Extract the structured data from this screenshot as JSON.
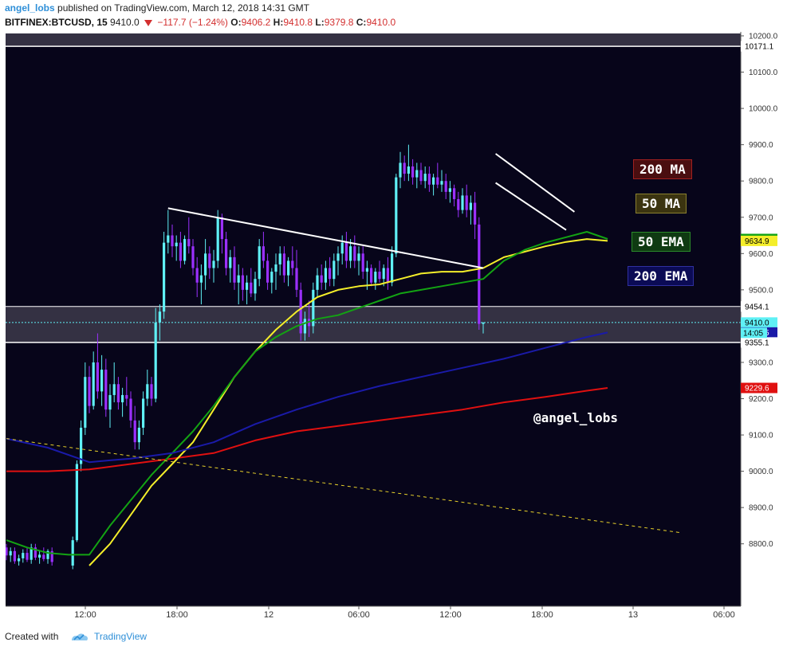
{
  "header": {
    "author": "angel_lobs",
    "published_text": "published on TradingView.com, March 12, 2018 14:31 GMT",
    "symbol": "BITFINEX:BTCUSD, 15",
    "last": "9410.0",
    "change": "−117.7 (−1.24%)",
    "open_label": "O:",
    "open": "9406.2",
    "high_label": "H:",
    "high": "9410.8",
    "low_label": "L:",
    "low": "9379.8",
    "close_label": "C:",
    "close": "9410.0"
  },
  "footer": {
    "created_with": "Created with",
    "brand": "TradingView"
  },
  "watermark": "@angel_lobs",
  "colors": {
    "background": "#07051a",
    "up_candle": "#5ff0f5",
    "down_candle": "#9b30ff",
    "ma200": "#e01010",
    "ma50": "#f4ee2a",
    "ema50": "#13a313",
    "ema200": "#1a1aa8",
    "resistance": "#ffffff",
    "trend_dashed": "#e8d22a",
    "zone": "#3a3648"
  },
  "legend": [
    {
      "label": "200 MA",
      "bg": "#4a0e10",
      "border": "#a02020",
      "color": "#ffffff"
    },
    {
      "label": "50 MA",
      "bg": "#3b3410",
      "border": "#8a8030",
      "color": "#ffffff"
    },
    {
      "label": "50 EMA",
      "bg": "#0f3a12",
      "border": "#2a8a2a",
      "color": "#ffffff"
    },
    {
      "label": "200 EMA",
      "bg": "#0b0b55",
      "border": "#3030a0",
      "color": "#ffffff"
    }
  ],
  "chart_data": {
    "type": "line",
    "title": "BITFINEX:BTCUSD, 15",
    "xlabel": "",
    "ylabel": "",
    "ylim": [
      8730,
      10330
    ],
    "x_ticks": [
      "12:00",
      "18:00",
      "12",
      "06:00",
      "12:00",
      "18:00",
      "13",
      "06:00"
    ],
    "y_ticks": [
      "8800.0",
      "8900.0",
      "9000.0",
      "9100.0",
      "9200.0",
      "9300.0",
      "9400.0",
      "9500.0",
      "9600.0",
      "9700.0",
      "9800.0",
      "9900.0",
      "10000.0",
      "10100.0",
      "10200.0"
    ],
    "price_labels": [
      {
        "value": 10171.1,
        "text": "10171.1",
        "bg": "#ffffff",
        "fg": "#000000"
      },
      {
        "value": 9640.2,
        "text": "9640.2",
        "bg": "#13a313",
        "fg": "#ffffff"
      },
      {
        "value": 9634.9,
        "text": "9634.9",
        "bg": "#f4ee2a",
        "fg": "#000000"
      },
      {
        "value": 9454.1,
        "text": "9454.1",
        "bg": "#ffffff",
        "fg": "#000000"
      },
      {
        "value": 9410.0,
        "text": "9410.0",
        "bg": "#5ff0f5",
        "fg": "#000000"
      },
      {
        "value": 9382.5,
        "text": "9382.5",
        "bg": "#1a1aa8",
        "fg": "#ffffff"
      },
      {
        "value": 9355.1,
        "text": "9355.1",
        "bg": "#ffffff",
        "fg": "#000000"
      },
      {
        "value": 9229.6,
        "text": "9229.6",
        "bg": "#e01010",
        "fg": "#ffffff"
      }
    ],
    "countdown": "14:05",
    "zones": [
      {
        "name": "upper",
        "from": 10171.1,
        "to": 10330
      },
      {
        "name": "support",
        "from": 9355.1,
        "to": 9454.1
      }
    ],
    "series": [
      {
        "name": "200 MA",
        "x": [
          0,
          10,
          20,
          30,
          40,
          50,
          60,
          70,
          80,
          90,
          100,
          110,
          120,
          130,
          140,
          145
        ],
        "values": [
          9000,
          9000,
          9005,
          9020,
          9035,
          9050,
          9085,
          9110,
          9125,
          9140,
          9155,
          9170,
          9190,
          9205,
          9222,
          9229.6
        ]
      },
      {
        "name": "50 MA",
        "x": [
          20,
          25,
          30,
          35,
          40,
          45,
          50,
          55,
          60,
          65,
          70,
          75,
          80,
          85,
          90,
          95,
          100,
          105,
          110,
          115,
          120,
          125,
          130,
          135,
          140,
          145
        ],
        "values": [
          8740,
          8800,
          8880,
          8960,
          9020,
          9080,
          9170,
          9260,
          9330,
          9390,
          9440,
          9480,
          9500,
          9510,
          9515,
          9530,
          9545,
          9550,
          9550,
          9560,
          9590,
          9605,
          9620,
          9632,
          9640,
          9634.9
        ]
      },
      {
        "name": "50 EMA",
        "x": [
          0,
          5,
          10,
          15,
          20,
          25,
          30,
          35,
          40,
          45,
          50,
          55,
          60,
          65,
          70,
          75,
          80,
          85,
          90,
          95,
          100,
          105,
          110,
          115,
          120,
          125,
          130,
          135,
          140,
          145
        ],
        "values": [
          8810,
          8790,
          8775,
          8770,
          8770,
          8850,
          8920,
          8990,
          9050,
          9110,
          9180,
          9260,
          9330,
          9370,
          9400,
          9420,
          9430,
          9450,
          9470,
          9490,
          9500,
          9510,
          9520,
          9530,
          9580,
          9610,
          9630,
          9645,
          9660,
          9640.2
        ]
      },
      {
        "name": "200 EMA",
        "x": [
          0,
          10,
          20,
          25,
          30,
          40,
          50,
          60,
          70,
          80,
          90,
          100,
          110,
          120,
          130,
          140,
          145
        ],
        "values": [
          9090,
          9065,
          9025,
          9030,
          9035,
          9050,
          9080,
          9130,
          9170,
          9205,
          9235,
          9260,
          9285,
          9310,
          9340,
          9370,
          9382.5
        ]
      },
      {
        "name": "Resistance",
        "x": [
          39,
          115
        ],
        "values": [
          9725,
          9560
        ]
      },
      {
        "name": "Channel top",
        "x": [
          118,
          137
        ],
        "values": [
          9875,
          9715
        ]
      },
      {
        "name": "Channel bottom",
        "x": [
          118,
          135
        ],
        "values": [
          9795,
          9665
        ]
      },
      {
        "name": "Long trendline",
        "x": [
          0,
          163
        ],
        "values": [
          9090,
          8830
        ]
      }
    ],
    "candles": [
      {
        "x": 0,
        "o": 8790,
        "h": 8800,
        "l": 8755,
        "c": 8768
      },
      {
        "x": 1,
        "o": 8768,
        "h": 8790,
        "l": 8750,
        "c": 8780
      },
      {
        "x": 2,
        "o": 8780,
        "h": 8790,
        "l": 8745,
        "c": 8752
      },
      {
        "x": 3,
        "o": 8752,
        "h": 8770,
        "l": 8740,
        "c": 8760
      },
      {
        "x": 4,
        "o": 8760,
        "h": 8785,
        "l": 8748,
        "c": 8775
      },
      {
        "x": 5,
        "o": 8775,
        "h": 8790,
        "l": 8750,
        "c": 8756
      },
      {
        "x": 6,
        "o": 8756,
        "h": 8800,
        "l": 8745,
        "c": 8790
      },
      {
        "x": 7,
        "o": 8790,
        "h": 8800,
        "l": 8755,
        "c": 8762
      },
      {
        "x": 8,
        "o": 8762,
        "h": 8780,
        "l": 8745,
        "c": 8770
      },
      {
        "x": 9,
        "o": 8770,
        "h": 8790,
        "l": 8752,
        "c": 8758
      },
      {
        "x": 10,
        "o": 8758,
        "h": 8785,
        "l": 8745,
        "c": 8780
      },
      {
        "x": 11,
        "o": 8780,
        "h": 8790,
        "l": 8740,
        "c": 8750
      },
      {
        "x": 16,
        "o": 8740,
        "h": 8820,
        "l": 8730,
        "c": 8810
      },
      {
        "x": 17,
        "o": 8810,
        "h": 9030,
        "l": 8805,
        "c": 9020
      },
      {
        "x": 18,
        "o": 9020,
        "h": 9140,
        "l": 9000,
        "c": 9120
      },
      {
        "x": 19,
        "o": 9120,
        "h": 9300,
        "l": 9100,
        "c": 9260
      },
      {
        "x": 20,
        "o": 9260,
        "h": 9290,
        "l": 9160,
        "c": 9180
      },
      {
        "x": 21,
        "o": 9180,
        "h": 9330,
        "l": 9170,
        "c": 9300
      },
      {
        "x": 22,
        "o": 9300,
        "h": 9380,
        "l": 9200,
        "c": 9220
      },
      {
        "x": 23,
        "o": 9220,
        "h": 9320,
        "l": 9180,
        "c": 9280
      },
      {
        "x": 24,
        "o": 9280,
        "h": 9310,
        "l": 9150,
        "c": 9170
      },
      {
        "x": 25,
        "o": 9170,
        "h": 9240,
        "l": 9120,
        "c": 9210
      },
      {
        "x": 26,
        "o": 9210,
        "h": 9300,
        "l": 9190,
        "c": 9240
      },
      {
        "x": 27,
        "o": 9240,
        "h": 9260,
        "l": 9170,
        "c": 9190
      },
      {
        "x": 28,
        "o": 9190,
        "h": 9230,
        "l": 9150,
        "c": 9210
      },
      {
        "x": 29,
        "o": 9210,
        "h": 9260,
        "l": 9180,
        "c": 9200
      },
      {
        "x": 30,
        "o": 9200,
        "h": 9220,
        "l": 9120,
        "c": 9140
      },
      {
        "x": 31,
        "o": 9140,
        "h": 9180,
        "l": 9060,
        "c": 9080
      },
      {
        "x": 32,
        "o": 9080,
        "h": 9140,
        "l": 9060,
        "c": 9120
      },
      {
        "x": 33,
        "o": 9120,
        "h": 9220,
        "l": 9100,
        "c": 9200
      },
      {
        "x": 34,
        "o": 9200,
        "h": 9280,
        "l": 9180,
        "c": 9240
      },
      {
        "x": 35,
        "o": 9240,
        "h": 9260,
        "l": 9180,
        "c": 9200
      },
      {
        "x": 36,
        "o": 9200,
        "h": 9450,
        "l": 9190,
        "c": 9410
      },
      {
        "x": 37,
        "o": 9410,
        "h": 9460,
        "l": 9360,
        "c": 9440
      },
      {
        "x": 38,
        "o": 9440,
        "h": 9660,
        "l": 9420,
        "c": 9630
      },
      {
        "x": 39,
        "o": 9630,
        "h": 9720,
        "l": 9600,
        "c": 9650
      },
      {
        "x": 40,
        "o": 9650,
        "h": 9680,
        "l": 9590,
        "c": 9620
      },
      {
        "x": 41,
        "o": 9620,
        "h": 9650,
        "l": 9580,
        "c": 9630
      },
      {
        "x": 42,
        "o": 9630,
        "h": 9660,
        "l": 9560,
        "c": 9580
      },
      {
        "x": 43,
        "o": 9580,
        "h": 9650,
        "l": 9570,
        "c": 9640
      },
      {
        "x": 44,
        "o": 9640,
        "h": 9700,
        "l": 9600,
        "c": 9620
      },
      {
        "x": 45,
        "o": 9620,
        "h": 9640,
        "l": 9540,
        "c": 9560
      },
      {
        "x": 46,
        "o": 9560,
        "h": 9590,
        "l": 9480,
        "c": 9520
      },
      {
        "x": 47,
        "o": 9520,
        "h": 9570,
        "l": 9460,
        "c": 9540
      },
      {
        "x": 48,
        "o": 9540,
        "h": 9640,
        "l": 9500,
        "c": 9600
      },
      {
        "x": 49,
        "o": 9600,
        "h": 9620,
        "l": 9530,
        "c": 9560
      },
      {
        "x": 50,
        "o": 9560,
        "h": 9610,
        "l": 9520,
        "c": 9580
      },
      {
        "x": 51,
        "o": 9580,
        "h": 9720,
        "l": 9560,
        "c": 9700
      },
      {
        "x": 52,
        "o": 9700,
        "h": 9710,
        "l": 9600,
        "c": 9640
      },
      {
        "x": 53,
        "o": 9640,
        "h": 9660,
        "l": 9540,
        "c": 9560
      },
      {
        "x": 54,
        "o": 9560,
        "h": 9610,
        "l": 9520,
        "c": 9590
      },
      {
        "x": 55,
        "o": 9590,
        "h": 9620,
        "l": 9500,
        "c": 9520
      },
      {
        "x": 56,
        "o": 9520,
        "h": 9570,
        "l": 9460,
        "c": 9540
      },
      {
        "x": 57,
        "o": 9540,
        "h": 9560,
        "l": 9470,
        "c": 9500
      },
      {
        "x": 58,
        "o": 9500,
        "h": 9540,
        "l": 9460,
        "c": 9520
      },
      {
        "x": 59,
        "o": 9520,
        "h": 9560,
        "l": 9480,
        "c": 9490
      },
      {
        "x": 60,
        "o": 9490,
        "h": 9550,
        "l": 9470,
        "c": 9530
      },
      {
        "x": 61,
        "o": 9530,
        "h": 9640,
        "l": 9510,
        "c": 9620
      },
      {
        "x": 62,
        "o": 9620,
        "h": 9660,
        "l": 9560,
        "c": 9580
      },
      {
        "x": 63,
        "o": 9580,
        "h": 9600,
        "l": 9500,
        "c": 9520
      },
      {
        "x": 64,
        "o": 9520,
        "h": 9560,
        "l": 9490,
        "c": 9550
      },
      {
        "x": 65,
        "o": 9550,
        "h": 9600,
        "l": 9500,
        "c": 9570
      },
      {
        "x": 66,
        "o": 9570,
        "h": 9620,
        "l": 9540,
        "c": 9600
      },
      {
        "x": 67,
        "o": 9600,
        "h": 9620,
        "l": 9520,
        "c": 9540
      },
      {
        "x": 68,
        "o": 9540,
        "h": 9590,
        "l": 9510,
        "c": 9580
      },
      {
        "x": 69,
        "o": 9580,
        "h": 9620,
        "l": 9540,
        "c": 9560
      },
      {
        "x": 70,
        "o": 9560,
        "h": 9610,
        "l": 9480,
        "c": 9500
      },
      {
        "x": 71,
        "o": 9500,
        "h": 9520,
        "l": 9360,
        "c": 9380
      },
      {
        "x": 72,
        "o": 9380,
        "h": 9440,
        "l": 9360,
        "c": 9420
      },
      {
        "x": 73,
        "o": 9420,
        "h": 9470,
        "l": 9370,
        "c": 9400
      },
      {
        "x": 74,
        "o": 9400,
        "h": 9520,
        "l": 9380,
        "c": 9500
      },
      {
        "x": 75,
        "o": 9500,
        "h": 9560,
        "l": 9480,
        "c": 9540
      },
      {
        "x": 76,
        "o": 9540,
        "h": 9570,
        "l": 9500,
        "c": 9520
      },
      {
        "x": 77,
        "o": 9520,
        "h": 9580,
        "l": 9500,
        "c": 9560
      },
      {
        "x": 78,
        "o": 9560,
        "h": 9590,
        "l": 9510,
        "c": 9530
      },
      {
        "x": 79,
        "o": 9530,
        "h": 9600,
        "l": 9510,
        "c": 9580
      },
      {
        "x": 80,
        "o": 9580,
        "h": 9620,
        "l": 9540,
        "c": 9600
      },
      {
        "x": 81,
        "o": 9600,
        "h": 9650,
        "l": 9570,
        "c": 9630
      },
      {
        "x": 82,
        "o": 9630,
        "h": 9660,
        "l": 9560,
        "c": 9580
      },
      {
        "x": 83,
        "o": 9580,
        "h": 9640,
        "l": 9560,
        "c": 9620
      },
      {
        "x": 84,
        "o": 9620,
        "h": 9650,
        "l": 9560,
        "c": 9580
      },
      {
        "x": 85,
        "o": 9580,
        "h": 9620,
        "l": 9540,
        "c": 9600
      },
      {
        "x": 86,
        "o": 9600,
        "h": 9620,
        "l": 9530,
        "c": 9550
      },
      {
        "x": 87,
        "o": 9550,
        "h": 9580,
        "l": 9500,
        "c": 9560
      },
      {
        "x": 88,
        "o": 9560,
        "h": 9570,
        "l": 9510,
        "c": 9520
      },
      {
        "x": 89,
        "o": 9520,
        "h": 9560,
        "l": 9500,
        "c": 9550
      },
      {
        "x": 90,
        "o": 9550,
        "h": 9580,
        "l": 9520,
        "c": 9530
      },
      {
        "x": 91,
        "o": 9530,
        "h": 9570,
        "l": 9510,
        "c": 9560
      },
      {
        "x": 92,
        "o": 9560,
        "h": 9590,
        "l": 9500,
        "c": 9520
      },
      {
        "x": 93,
        "o": 9520,
        "h": 9620,
        "l": 9510,
        "c": 9600
      },
      {
        "x": 94,
        "o": 9600,
        "h": 9820,
        "l": 9590,
        "c": 9810
      },
      {
        "x": 95,
        "o": 9810,
        "h": 9880,
        "l": 9780,
        "c": 9850
      },
      {
        "x": 96,
        "o": 9850,
        "h": 9870,
        "l": 9800,
        "c": 9820
      },
      {
        "x": 97,
        "o": 9820,
        "h": 9900,
        "l": 9800,
        "c": 9840
      },
      {
        "x": 98,
        "o": 9840,
        "h": 9860,
        "l": 9790,
        "c": 9810
      },
      {
        "x": 99,
        "o": 9810,
        "h": 9850,
        "l": 9780,
        "c": 9830
      },
      {
        "x": 100,
        "o": 9830,
        "h": 9850,
        "l": 9790,
        "c": 9800
      },
      {
        "x": 101,
        "o": 9800,
        "h": 9840,
        "l": 9780,
        "c": 9820
      },
      {
        "x": 102,
        "o": 9820,
        "h": 9840,
        "l": 9770,
        "c": 9790
      },
      {
        "x": 103,
        "o": 9790,
        "h": 9820,
        "l": 9760,
        "c": 9810
      },
      {
        "x": 104,
        "o": 9810,
        "h": 9850,
        "l": 9780,
        "c": 9790
      },
      {
        "x": 105,
        "o": 9790,
        "h": 9830,
        "l": 9770,
        "c": 9800
      },
      {
        "x": 106,
        "o": 9800,
        "h": 9820,
        "l": 9750,
        "c": 9770
      },
      {
        "x": 107,
        "o": 9770,
        "h": 9800,
        "l": 9740,
        "c": 9780
      },
      {
        "x": 108,
        "o": 9780,
        "h": 9790,
        "l": 9730,
        "c": 9750
      },
      {
        "x": 109,
        "o": 9750,
        "h": 9770,
        "l": 9700,
        "c": 9720
      },
      {
        "x": 110,
        "o": 9720,
        "h": 9780,
        "l": 9710,
        "c": 9760
      },
      {
        "x": 111,
        "o": 9760,
        "h": 9790,
        "l": 9700,
        "c": 9720
      },
      {
        "x": 112,
        "o": 9720,
        "h": 9760,
        "l": 9680,
        "c": 9740
      },
      {
        "x": 113,
        "o": 9740,
        "h": 9770,
        "l": 9640,
        "c": 9680
      },
      {
        "x": 114,
        "o": 9680,
        "h": 9700,
        "l": 9390,
        "c": 9406.2
      },
      {
        "x": 115,
        "o": 9406.2,
        "h": 9410.8,
        "l": 9379.8,
        "c": 9410.0
      }
    ]
  }
}
